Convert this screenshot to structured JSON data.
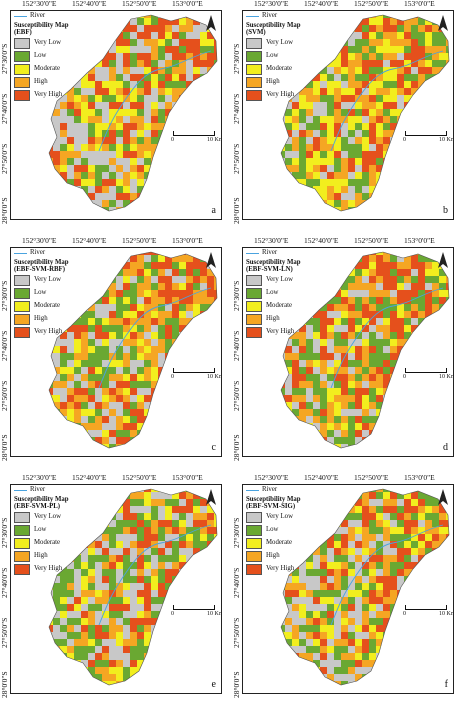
{
  "colors": {
    "very_low": "#c8c8c8",
    "low": "#6aa832",
    "moderate": "#f2ee1e",
    "high": "#f5a623",
    "very_high": "#e5501c",
    "river": "#4aa3df"
  },
  "common": {
    "river_label": "River",
    "classes": [
      "Very Low",
      "Low",
      "Moderate",
      "High",
      "Very High"
    ],
    "lon_ticks": [
      "152°30'0\"E",
      "152°40'0\"E",
      "152°50'0\"E",
      "153°0'0\"E"
    ],
    "lat_ticks": [
      "27°30'0\"S",
      "27°40'0\"S",
      "27°50'0\"S",
      "28°0'0\"S"
    ],
    "scale_start": "0",
    "scale_end": "10 Km"
  },
  "panels": [
    {
      "letter": "a",
      "map_title_1": "Susceptibility Map",
      "map_title_2": "(EBF)",
      "mix": [
        0.3,
        0.2,
        0.12,
        0.18,
        0.2
      ]
    },
    {
      "letter": "b",
      "map_title_1": "Susceptibility Map",
      "map_title_2": "(SVM)",
      "mix": [
        0.12,
        0.22,
        0.24,
        0.22,
        0.2
      ]
    },
    {
      "letter": "c",
      "map_title_1": "Susceptibility Map",
      "map_title_2": "(EBF-SVM-RBF)",
      "mix": [
        0.18,
        0.22,
        0.14,
        0.26,
        0.2
      ]
    },
    {
      "letter": "d",
      "map_title_1": "Susceptibility Map",
      "map_title_2": "(EBF-SVM-LN)",
      "mix": [
        0.14,
        0.26,
        0.14,
        0.24,
        0.22
      ]
    },
    {
      "letter": "e",
      "map_title_1": "Susceptibility Map",
      "map_title_2": "(EBF-SVM-PL)",
      "mix": [
        0.24,
        0.26,
        0.16,
        0.18,
        0.16
      ]
    },
    {
      "letter": "f",
      "map_title_1": "Susceptibility Map",
      "map_title_2": "(EBF-SVM-SIG)",
      "mix": [
        0.22,
        0.22,
        0.16,
        0.22,
        0.18
      ]
    }
  ]
}
